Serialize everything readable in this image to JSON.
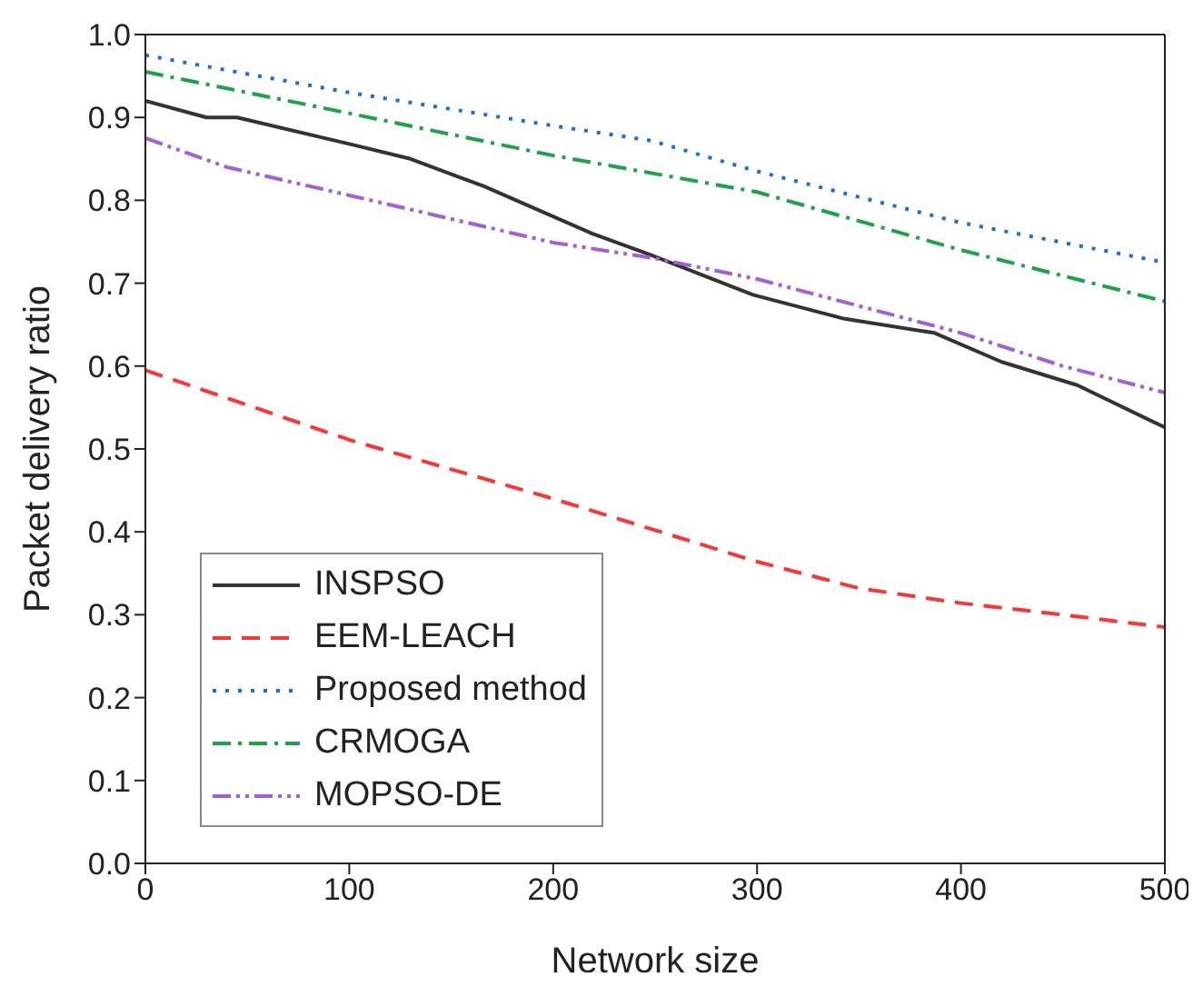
{
  "chart_data": {
    "type": "line",
    "xlabel": "Network size",
    "ylabel": "Packet delivery ratio",
    "xlim": [
      0,
      500
    ],
    "xticks": [
      0,
      100,
      200,
      300,
      400,
      500
    ],
    "ylim": [
      0,
      1
    ],
    "yticks": [
      {
        "value": 0,
        "label": "0.0"
      },
      {
        "value": 0.1,
        "label": "0.1"
      },
      {
        "value": 0.2,
        "label": "0.2"
      },
      {
        "value": 0.3,
        "label": "0.3"
      },
      {
        "value": 0.4,
        "label": "0.4"
      },
      {
        "value": 0.5,
        "label": "0.5"
      },
      {
        "value": 0.6,
        "label": "0.6"
      },
      {
        "value": 0.7,
        "label": "0.7"
      },
      {
        "value": 0.8,
        "label": "0.8"
      },
      {
        "value": 0.9,
        "label": "0.9"
      },
      {
        "value": 1,
        "label": "1.0"
      }
    ],
    "grid": false,
    "legend": "bottom left",
    "marker": "none",
    "series": [
      {
        "name": "INSPSO",
        "color": "#333333",
        "line_style": "solid",
        "x": [
          0,
          30,
          45,
          100,
          130,
          166,
          219,
          248,
          298,
          343,
          387,
          420,
          457,
          500
        ],
        "values": [
          0.92,
          0.9,
          0.9,
          0.868,
          0.85,
          0.817,
          0.76,
          0.734,
          0.686,
          0.657,
          0.64,
          0.605,
          0.577,
          0.526
        ]
      },
      {
        "name": "EEM-LEACH",
        "color": "#ff3333",
        "line_style": "dashed",
        "x": [
          0,
          100,
          200,
          300,
          350,
          400,
          450,
          500
        ],
        "values": [
          0.595,
          0.511,
          0.44,
          0.364,
          0.332,
          0.314,
          0.3,
          0.285
        ]
      },
      {
        "name": "Proposed method",
        "color": "#1a6fdf",
        "line_style": "dotted",
        "x": [
          0,
          100,
          200,
          248,
          300,
          400,
          500
        ],
        "values": [
          0.975,
          0.93,
          0.89,
          0.872,
          0.835,
          0.773,
          0.725
        ]
      },
      {
        "name": "CRMOGA",
        "color": "#1aa34a",
        "line_style": "dashdot",
        "x": [
          0,
          50,
          100,
          200,
          300,
          400,
          500
        ],
        "values": [
          0.955,
          0.93,
          0.905,
          0.854,
          0.81,
          0.74,
          0.678
        ]
      },
      {
        "name": "MOPSO-DE",
        "color": "#a35ddf",
        "line_style": "dashdotdot",
        "x": [
          0,
          40,
          100,
          200,
          250,
          300,
          400,
          450,
          500
        ],
        "values": [
          0.875,
          0.84,
          0.806,
          0.749,
          0.73,
          0.705,
          0.64,
          0.6,
          0.568
        ]
      }
    ]
  }
}
